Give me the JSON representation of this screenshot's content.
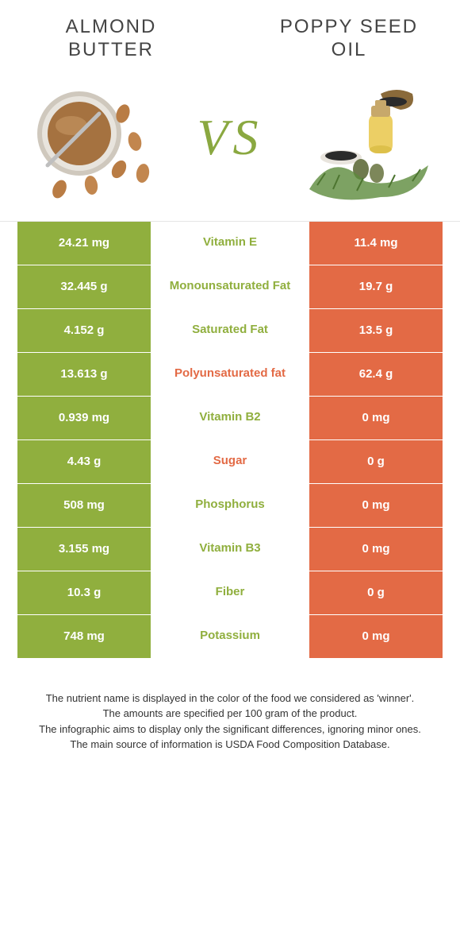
{
  "left": {
    "title": "Almond Butter",
    "color": "#90af3e"
  },
  "right": {
    "title": "Poppy seed oil",
    "color": "#e36a45"
  },
  "vs": "VS",
  "rows": [
    {
      "left": "24.21 mg",
      "label": "Vitamin E",
      "winner": "left",
      "right": "11.4 mg"
    },
    {
      "left": "32.445 g",
      "label": "Monounsaturated Fat",
      "winner": "left",
      "right": "19.7 g"
    },
    {
      "left": "4.152 g",
      "label": "Saturated Fat",
      "winner": "left",
      "right": "13.5 g"
    },
    {
      "left": "13.613 g",
      "label": "Polyunsaturated fat",
      "winner": "right",
      "right": "62.4 g"
    },
    {
      "left": "0.939 mg",
      "label": "Vitamin B2",
      "winner": "left",
      "right": "0 mg"
    },
    {
      "left": "4.43 g",
      "label": "Sugar",
      "winner": "right",
      "right": "0 g"
    },
    {
      "left": "508 mg",
      "label": "Phosphorus",
      "winner": "left",
      "right": "0 mg"
    },
    {
      "left": "3.155 mg",
      "label": "Vitamin B3",
      "winner": "left",
      "right": "0 mg"
    },
    {
      "left": "10.3 g",
      "label": "Fiber",
      "winner": "left",
      "right": "0 g"
    },
    {
      "left": "748 mg",
      "label": "Potassium",
      "winner": "left",
      "right": "0 mg"
    }
  ],
  "footer": {
    "l1": "The nutrient name is displayed in the color of the food we considered as 'winner'.",
    "l2": "The amounts are specified per 100 gram of the product.",
    "l3": "The infographic aims to display only the significant differences, ignoring minor ones.",
    "l4": "The main source of information is USDA Food Composition Database."
  }
}
